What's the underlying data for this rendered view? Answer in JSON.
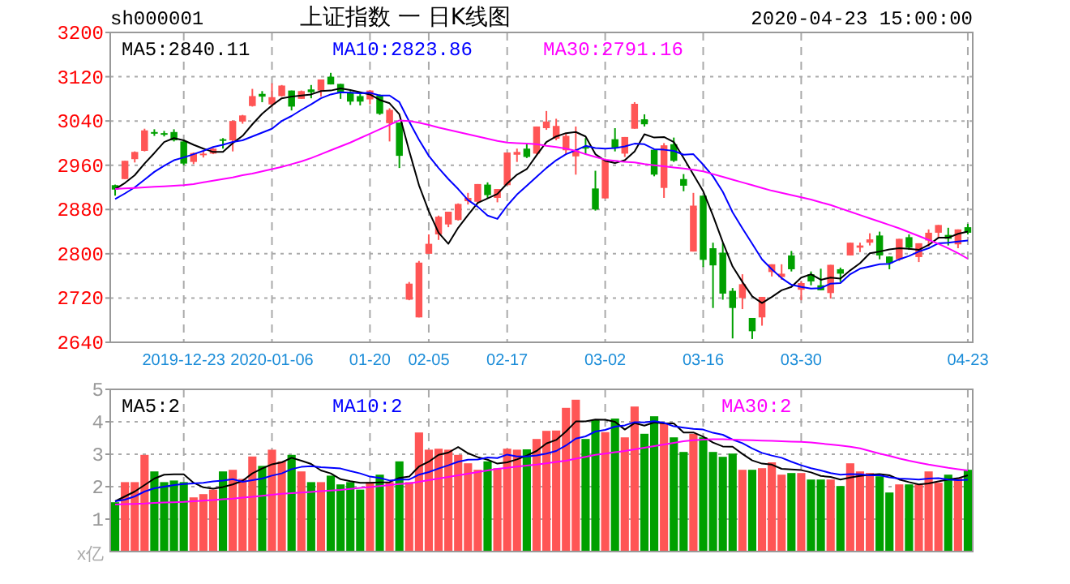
{
  "chart_data": [
    {
      "type": "candlestick",
      "title": "上证指数 一 日K线图",
      "annotations": [
        "sh000001",
        "2020-04-23 15:00:00"
      ],
      "categories": [
        null,
        null,
        null,
        null,
        null,
        null,
        null,
        "2019-12-23",
        null,
        null,
        null,
        null,
        null,
        null,
        null,
        null,
        "2020-01-06",
        null,
        null,
        null,
        null,
        null,
        null,
        null,
        null,
        null,
        "01-20",
        null,
        null,
        null,
        null,
        null,
        "02-05",
        null,
        null,
        null,
        null,
        null,
        null,
        null,
        "02-17",
        null,
        null,
        null,
        null,
        null,
        null,
        null,
        null,
        null,
        "03-02",
        null,
        null,
        null,
        null,
        null,
        null,
        null,
        null,
        null,
        "03-16",
        null,
        null,
        null,
        null,
        null,
        null,
        null,
        null,
        null,
        "03-30",
        null,
        null,
        null,
        null,
        null,
        null,
        null,
        null,
        null,
        null,
        null,
        null,
        null,
        null,
        null,
        null,
        "04-23"
      ],
      "ohlc": [
        [
          2924,
          2925,
          2905,
          2916
        ],
        [
          2935,
          2968,
          2935,
          2968
        ],
        [
          2971,
          2985,
          2965,
          2984
        ],
        [
          2986,
          3026,
          2985,
          3023
        ],
        [
          3020,
          3025,
          3013,
          3017
        ],
        [
          3018,
          3022,
          3012,
          3017
        ],
        [
          3020,
          3025,
          3003,
          3005
        ],
        [
          3003,
          3006,
          2960,
          2963
        ],
        [
          2966,
          2983,
          2962,
          2982
        ],
        [
          2980,
          2986,
          2974,
          2981
        ],
        [
          2981,
          2991,
          2980,
          2990
        ],
        [
          3007,
          3009,
          2990,
          3005
        ],
        [
          3005,
          3041,
          2985,
          3040
        ],
        [
          3039,
          3051,
          3035,
          3050
        ],
        [
          3067,
          3098,
          3066,
          3085
        ],
        [
          3089,
          3094,
          3074,
          3084
        ],
        [
          3070,
          3108,
          3066,
          3083
        ],
        [
          3085,
          3105,
          3084,
          3104
        ],
        [
          3095,
          3095,
          3059,
          3066
        ],
        [
          3080,
          3095,
          3080,
          3094
        ],
        [
          3097,
          3105,
          3081,
          3092
        ],
        [
          3095,
          3115,
          3084,
          3115
        ],
        [
          3120,
          3127,
          3106,
          3106
        ],
        [
          3107,
          3107,
          3080,
          3090
        ],
        [
          3092,
          3094,
          3069,
          3075
        ],
        [
          3085,
          3093,
          3068,
          3075
        ],
        [
          3079,
          3096,
          3070,
          3095
        ],
        [
          3086,
          3088,
          3051,
          3053
        ],
        [
          3036,
          3063,
          3003,
          3060
        ],
        [
          3037,
          3037,
          2955,
          2977
        ],
        [
          2717,
          2749,
          2716,
          2746
        ],
        [
          2685,
          2787,
          2685,
          2784
        ],
        [
          2800,
          2835,
          2800,
          2818
        ],
        [
          2835,
          2869,
          2825,
          2867
        ],
        [
          2853,
          2876,
          2848,
          2876
        ],
        [
          2861,
          2891,
          2860,
          2890
        ],
        [
          2895,
          2910,
          2889,
          2901
        ],
        [
          2894,
          2926,
          2891,
          2926
        ],
        [
          2925,
          2929,
          2900,
          2906
        ],
        [
          2901,
          2917,
          2893,
          2917
        ],
        [
          2924,
          2983,
          2924,
          2983
        ],
        [
          2979,
          2990,
          2966,
          2984
        ],
        [
          2990,
          2998,
          2973,
          2975
        ],
        [
          2981,
          3030,
          2980,
          3030
        ],
        [
          3027,
          3058,
          3024,
          3039
        ],
        [
          3008,
          3044,
          3005,
          3031
        ],
        [
          2987,
          3017,
          2980,
          3013
        ],
        [
          2976,
          3030,
          2943,
          2987
        ],
        [
          2993,
          3009,
          2980,
          2991
        ],
        [
          2918,
          2950,
          2878,
          2880
        ],
        [
          2900,
          2972,
          2900,
          2970
        ],
        [
          3007,
          3027,
          2985,
          2992
        ],
        [
          2981,
          3011,
          2975,
          3011
        ],
        [
          3026,
          3074,
          3026,
          3071
        ],
        [
          3043,
          3052,
          3030,
          3034
        ],
        [
          2988,
          2989,
          2940,
          2943
        ],
        [
          2919,
          3000,
          2901,
          2996
        ],
        [
          2998,
          3010,
          2966,
          2968
        ],
        [
          2935,
          2944,
          2913,
          2923
        ],
        [
          2804,
          2910,
          2804,
          2887
        ],
        [
          2905,
          2905,
          2776,
          2789
        ],
        [
          2810,
          2820,
          2702,
          2779
        ],
        [
          2802,
          2820,
          2717,
          2728
        ],
        [
          2733,
          2738,
          2647,
          2702
        ],
        [
          2720,
          2763,
          2700,
          2745
        ],
        [
          2684,
          2684,
          2646,
          2660
        ],
        [
          2685,
          2722,
          2670,
          2722
        ],
        [
          2767,
          2781,
          2759,
          2781
        ],
        [
          2758,
          2781,
          2753,
          2764
        ],
        [
          2797,
          2805,
          2768,
          2772
        ],
        [
          2735,
          2750,
          2716,
          2747
        ],
        [
          2763,
          2768,
          2743,
          2750
        ],
        [
          2743,
          2773,
          2734,
          2734
        ],
        [
          2729,
          2780,
          2719,
          2780
        ],
        [
          2772,
          2775,
          2749,
          2764
        ],
        [
          2797,
          2820,
          2797,
          2820
        ],
        [
          2811,
          2820,
          2803,
          2815
        ],
        [
          2820,
          2837,
          2815,
          2826
        ],
        [
          2833,
          2840,
          2790,
          2797
        ],
        [
          2795,
          2795,
          2772,
          2783
        ],
        [
          2790,
          2827,
          2787,
          2827
        ],
        [
          2830,
          2835,
          2807,
          2811
        ],
        [
          2794,
          2819,
          2785,
          2819
        ],
        [
          2824,
          2844,
          2813,
          2838
        ],
        [
          2838,
          2852,
          2828,
          2852
        ],
        [
          2834,
          2847,
          2815,
          2827
        ],
        [
          2817,
          2844,
          2810,
          2844
        ],
        [
          2848,
          2854,
          2835,
          2838
        ]
      ],
      "colors": [
        "#00a000",
        "#ff5555",
        "#ff5555",
        "#ff5555",
        "#00a000",
        "#00a000",
        "#00a000",
        "#00a000",
        "#ff5555",
        "#ff5555",
        "#ff5555",
        "#00a000",
        "#ff5555",
        "#ff5555",
        "#ff5555",
        "#00a000",
        "#ff5555",
        "#ff5555",
        "#00a000",
        "#ff5555",
        "#00a000",
        "#ff5555",
        "#00a000",
        "#00a000",
        "#00a000",
        "#00a000",
        "#ff5555",
        "#00a000",
        "#ff5555",
        "#00a000",
        "#ff5555",
        "#ff5555",
        "#ff5555",
        "#ff5555",
        "#ff5555",
        "#ff5555",
        "#ff5555",
        "#ff5555",
        "#00a000",
        "#ff5555",
        "#ff5555",
        "#ff5555",
        "#00a000",
        "#ff5555",
        "#ff5555",
        "#ff5555",
        "#ff5555",
        "#ff5555",
        "#00a000",
        "#00a000",
        "#ff5555",
        "#00a000",
        "#ff5555",
        "#ff5555",
        "#00a000",
        "#00a000",
        "#ff5555",
        "#00a000",
        "#00a000",
        "#ff5555",
        "#00a000",
        "#00a000",
        "#00a000",
        "#00a000",
        "#ff5555",
        "#00a000",
        "#ff5555",
        "#ff5555",
        "#ff5555",
        "#00a000",
        "#ff5555",
        "#00a000",
        "#00a000",
        "#ff5555",
        "#00a000",
        "#ff5555",
        "#ff5555",
        "#ff5555",
        "#00a000",
        "#00a000",
        "#ff5555",
        "#00a000",
        "#ff5555",
        "#ff5555",
        "#ff5555",
        "#00a000",
        "#ff5555",
        "#00a000"
      ],
      "series": [
        {
          "name": "MA5:2840.11",
          "type": "line",
          "color": "#000000",
          "values": [
            2917,
            2928,
            2942,
            2963,
            2982,
            3002,
            3009,
            3005,
            2997,
            2990,
            2984,
            2984,
            3000,
            3013,
            3034,
            3053,
            3068,
            3081,
            3084,
            3086,
            3088,
            3094,
            3095,
            3099,
            3096,
            3092,
            3088,
            3078,
            3072,
            3052,
            2986,
            2924,
            2877,
            2838,
            2818,
            2847,
            2870,
            2892,
            2900,
            2908,
            2927,
            2943,
            2953,
            2978,
            3002,
            3012,
            3018,
            3020,
            3012,
            2980,
            2968,
            2964,
            2969,
            2985,
            3016,
            3010,
            3011,
            3002,
            2973,
            2943,
            2913,
            2869,
            2821,
            2777,
            2749,
            2723,
            2711,
            2722,
            2734,
            2740,
            2757,
            2763,
            2753,
            2757,
            2755,
            2770,
            2783,
            2801,
            2804,
            2808,
            2810,
            2809,
            2807,
            2816,
            2829,
            2829,
            2836,
            2840
          ]
        },
        {
          "name": "MA10:2823.86",
          "type": "line",
          "color": "#0000ff",
          "values": [
            2899,
            2909,
            2920,
            2934,
            2948,
            2959,
            2969,
            2974,
            2980,
            2986,
            2993,
            2997,
            3002,
            3005,
            3012,
            3019,
            3026,
            3040,
            3049,
            3060,
            3070,
            3081,
            3088,
            3092,
            3091,
            3090,
            3091,
            3086,
            3086,
            3074,
            3039,
            3006,
            2977,
            2955,
            2935,
            2917,
            2897,
            2885,
            2869,
            2863,
            2887,
            2907,
            2923,
            2939,
            2955,
            2969,
            2980,
            2987,
            2995,
            2991,
            2990,
            2991,
            2994,
            2999,
            2998,
            2989,
            2988,
            2986,
            2979,
            2980,
            2961,
            2940,
            2912,
            2875,
            2846,
            2818,
            2790,
            2772,
            2756,
            2744,
            2740,
            2737,
            2738,
            2746,
            2747,
            2763,
            2773,
            2777,
            2781,
            2782,
            2790,
            2796,
            2804,
            2810,
            2819,
            2820,
            2822,
            2824
          ]
        },
        {
          "name": "MA30:2791.16",
          "type": "line",
          "color": "#ff00ff",
          "values": [
            2917,
            2918,
            2919,
            2920,
            2921,
            2922,
            2923,
            2924,
            2926,
            2929,
            2932,
            2935,
            2938,
            2942,
            2945,
            2949,
            2953,
            2957,
            2962,
            2967,
            2973,
            2980,
            2987,
            2994,
            3001,
            3009,
            3017,
            3025,
            3033,
            3041,
            3040,
            3037,
            3033,
            3028,
            3024,
            3020,
            3016,
            3012,
            3008,
            3004,
            3001,
            3000,
            2999,
            2998,
            2995,
            2993,
            2990,
            2986,
            2980,
            2975,
            2970,
            2968,
            2966,
            2965,
            2962,
            2960,
            2958,
            2956,
            2954,
            2952,
            2949,
            2944,
            2939,
            2934,
            2929,
            2924,
            2919,
            2914,
            2910,
            2906,
            2902,
            2898,
            2893,
            2888,
            2882,
            2876,
            2870,
            2864,
            2858,
            2852,
            2846,
            2839,
            2832,
            2825,
            2818,
            2810,
            2801,
            2791
          ]
        }
      ],
      "ylim": [
        2640,
        3200
      ],
      "yticks": [
        2640,
        2720,
        2800,
        2880,
        2960,
        3040,
        3120,
        3200
      ],
      "grid": true
    },
    {
      "type": "bar",
      "ylabel": "x亿",
      "categories": [
        null,
        null,
        null,
        null,
        null,
        null,
        null,
        null,
        null,
        null,
        null,
        null,
        null,
        null,
        null,
        null,
        null,
        null,
        null,
        null,
        null,
        null,
        null,
        null,
        null,
        null,
        null,
        null,
        null,
        null,
        null,
        null,
        null,
        null,
        null,
        null,
        null,
        null,
        null,
        null,
        null,
        null,
        null,
        null,
        null,
        null,
        null,
        null,
        null,
        null,
        null,
        null,
        null,
        null,
        null,
        null,
        null,
        null,
        null,
        null,
        null,
        null,
        null,
        null,
        null,
        null,
        null,
        null,
        null,
        null,
        null,
        null,
        null,
        null,
        null,
        null,
        null,
        null,
        null,
        null,
        null,
        null,
        null,
        null,
        null,
        null,
        null,
        null
      ],
      "values": [
        1.52,
        2.14,
        2.14,
        2.98,
        2.47,
        2.14,
        2.19,
        2.14,
        1.67,
        1.77,
        1.91,
        2.47,
        2.52,
        2.24,
        2.93,
        2.64,
        3.14,
        2.78,
        2.98,
        2.47,
        2.14,
        2.14,
        2.34,
        2.07,
        2.14,
        1.91,
        2.14,
        2.37,
        2.14,
        2.78,
        2.14,
        3.67,
        3.14,
        3.17,
        3.14,
        2.98,
        2.72,
        2.52,
        2.78,
        2.57,
        3.17,
        3.14,
        3.15,
        3.47,
        3.72,
        3.73,
        4.43,
        4.68,
        3.47,
        4.05,
        3.68,
        4.1,
        3.52,
        4.47,
        3.63,
        4.17,
        3.97,
        3.52,
        3.07,
        3.63,
        3.52,
        3.07,
        2.92,
        3.02,
        2.52,
        2.52,
        2.57,
        2.75,
        2.37,
        2.42,
        2.42,
        2.22,
        2.22,
        2.22,
        2.02,
        2.72,
        2.47,
        2.42,
        2.32,
        1.82,
        2.07,
        2.07,
        2.07,
        2.47,
        2.12,
        2.37,
        2.27,
        2.52
      ],
      "colors": [
        "#00a000",
        "#ff5555",
        "#ff5555",
        "#ff5555",
        "#00a000",
        "#00a000",
        "#00a000",
        "#00a000",
        "#ff5555",
        "#ff5555",
        "#ff5555",
        "#00a000",
        "#ff5555",
        "#ff5555",
        "#ff5555",
        "#00a000",
        "#ff5555",
        "#ff5555",
        "#00a000",
        "#ff5555",
        "#00a000",
        "#ff5555",
        "#00a000",
        "#00a000",
        "#00a000",
        "#00a000",
        "#ff5555",
        "#00a000",
        "#ff5555",
        "#00a000",
        "#ff5555",
        "#ff5555",
        "#ff5555",
        "#ff5555",
        "#ff5555",
        "#ff5555",
        "#ff5555",
        "#ff5555",
        "#00a000",
        "#ff5555",
        "#ff5555",
        "#ff5555",
        "#00a000",
        "#ff5555",
        "#ff5555",
        "#ff5555",
        "#ff5555",
        "#ff5555",
        "#00a000",
        "#00a000",
        "#ff5555",
        "#00a000",
        "#ff5555",
        "#ff5555",
        "#00a000",
        "#00a000",
        "#ff5555",
        "#00a000",
        "#00a000",
        "#ff5555",
        "#00a000",
        "#00a000",
        "#00a000",
        "#00a000",
        "#ff5555",
        "#00a000",
        "#ff5555",
        "#ff5555",
        "#ff5555",
        "#00a000",
        "#ff5555",
        "#00a000",
        "#00a000",
        "#ff5555",
        "#00a000",
        "#ff5555",
        "#ff5555",
        "#ff5555",
        "#00a000",
        "#00a000",
        "#ff5555",
        "#00a000",
        "#ff5555",
        "#ff5555",
        "#ff5555",
        "#00a000",
        "#ff5555",
        "#00a000"
      ],
      "series": [
        {
          "name": "MA5:2",
          "type": "line",
          "color": "#000000",
          "values": [
            1.55,
            1.7,
            1.85,
            2.05,
            2.25,
            2.37,
            2.38,
            2.38,
            2.12,
            1.98,
            1.94,
            1.99,
            2.07,
            2.18,
            2.41,
            2.56,
            2.69,
            2.75,
            2.89,
            2.8,
            2.7,
            2.5,
            2.41,
            2.23,
            2.17,
            2.12,
            2.12,
            2.13,
            2.14,
            2.27,
            2.31,
            2.62,
            2.77,
            2.98,
            3.05,
            3.22,
            3.03,
            2.91,
            2.83,
            2.71,
            2.75,
            2.84,
            2.96,
            3.1,
            3.33,
            3.44,
            3.7,
            4.01,
            4.01,
            4.07,
            4.06,
            4.0,
            3.76,
            3.96,
            3.88,
            3.98,
            3.95,
            3.95,
            3.67,
            3.67,
            3.54,
            3.36,
            3.24,
            3.23,
            3.01,
            2.81,
            2.71,
            2.68,
            2.55,
            2.53,
            2.51,
            2.44,
            2.33,
            2.3,
            2.22,
            2.28,
            2.33,
            2.37,
            2.39,
            2.35,
            2.22,
            2.14,
            2.07,
            2.1,
            2.16,
            2.22,
            2.26,
            2.35
          ]
        },
        {
          "name": "MA10:2",
          "type": "line",
          "color": "#0000ff",
          "values": [
            1.55,
            1.6,
            1.7,
            1.85,
            1.95,
            2.0,
            2.05,
            2.08,
            2.1,
            2.12,
            2.16,
            2.19,
            2.23,
            2.15,
            2.2,
            2.25,
            2.34,
            2.41,
            2.54,
            2.61,
            2.63,
            2.6,
            2.58,
            2.56,
            2.48,
            2.41,
            2.31,
            2.27,
            2.19,
            2.22,
            2.22,
            2.37,
            2.45,
            2.56,
            2.66,
            2.77,
            2.83,
            2.84,
            2.9,
            2.88,
            2.99,
            2.93,
            2.93,
            2.96,
            3.02,
            3.1,
            3.27,
            3.48,
            3.55,
            3.7,
            3.75,
            3.85,
            3.89,
            3.99,
            3.98,
            4.02,
            3.97,
            3.86,
            3.82,
            3.78,
            3.76,
            3.66,
            3.6,
            3.45,
            3.34,
            3.18,
            3.04,
            2.96,
            2.89,
            2.77,
            2.66,
            2.57,
            2.5,
            2.42,
            2.37,
            2.39,
            2.38,
            2.35,
            2.35,
            2.29,
            2.25,
            2.24,
            2.22,
            2.25,
            2.26,
            2.22,
            2.2,
            2.21
          ]
        },
        {
          "name": "MA30:2",
          "type": "line",
          "color": "#ff00ff",
          "values": [
            1.45,
            1.46,
            1.47,
            1.48,
            1.5,
            1.51,
            1.52,
            1.53,
            1.55,
            1.57,
            1.59,
            1.61,
            1.63,
            1.66,
            1.69,
            1.72,
            1.75,
            1.78,
            1.8,
            1.82,
            1.84,
            1.86,
            1.88,
            1.9,
            1.93,
            1.96,
            1.99,
            2.02,
            2.05,
            2.08,
            2.1,
            2.15,
            2.2,
            2.25,
            2.3,
            2.35,
            2.4,
            2.45,
            2.5,
            2.55,
            2.58,
            2.62,
            2.65,
            2.68,
            2.72,
            2.76,
            2.8,
            2.86,
            2.92,
            2.98,
            3.02,
            3.06,
            3.1,
            3.15,
            3.2,
            3.25,
            3.3,
            3.35,
            3.4,
            3.43,
            3.45,
            3.46,
            3.46,
            3.45,
            3.44,
            3.43,
            3.42,
            3.41,
            3.4,
            3.39,
            3.38,
            3.36,
            3.33,
            3.3,
            3.27,
            3.23,
            3.18,
            3.1,
            3.02,
            2.95,
            2.87,
            2.8,
            2.74,
            2.68,
            2.63,
            2.58,
            2.54,
            2.5
          ]
        }
      ],
      "ylim": [
        0,
        5
      ],
      "yticks": [
        1,
        2,
        3,
        4,
        5
      ],
      "grid": true,
      "tick_labels": "y"
    }
  ]
}
